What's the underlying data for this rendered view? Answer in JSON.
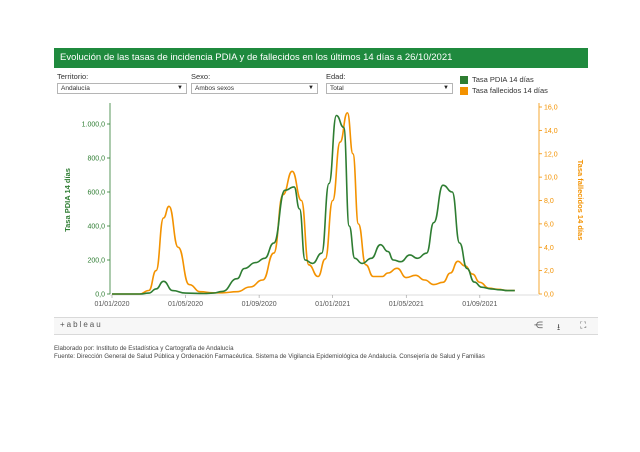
{
  "header": {
    "title": "Evolución de las tasas de incidencia PDIA y de fallecidos en los últimos 14 días a 26/10/2021"
  },
  "filters": [
    {
      "label": "Territorio:",
      "value": "Andalucía"
    },
    {
      "label": "Sexo:",
      "value": "Ambos sexos"
    },
    {
      "label": "Edad:",
      "value": "Total"
    }
  ],
  "legend": [
    {
      "label": "Tasa PDIA 14 días",
      "color": "#2e7d32"
    },
    {
      "label": "Tasa fallecidos 14 días",
      "color": "#f39200"
    }
  ],
  "chart_data": {
    "type": "line",
    "x_ticks": [
      "01/01/2020",
      "01/05/2020",
      "01/09/2020",
      "01/01/2021",
      "01/05/2021",
      "01/09/2021"
    ],
    "ylabel_left": "Tasa PDIA 14 días",
    "ylabel_right": "Tasa fallecidos 14 días",
    "ylim_left": [
      0,
      1100
    ],
    "ylim_right": [
      0,
      16
    ],
    "y_ticks_left": [
      "0,0",
      "200,0",
      "400,0",
      "600,0",
      "800,0",
      "1.000,0"
    ],
    "y_ticks_right": [
      "0,0",
      "2,0",
      "4,0",
      "6,0",
      "8,0",
      "10,0",
      "12,0",
      "14,0",
      "16,0"
    ],
    "series": [
      {
        "name": "Tasa PDIA 14 días",
        "color": "#2e7d32",
        "x_months": [
          0,
          1.5,
          2,
          2.4,
          2.8,
          3.3,
          4,
          5,
          5.5,
          6,
          6.8,
          7.2,
          7.8,
          8.3,
          8.8,
          9.4,
          9.9,
          10.2,
          10.5,
          10.9,
          11.4,
          11.8,
          12.2,
          12.6,
          12.9,
          13.2,
          13.6,
          14.1,
          14.6,
          15,
          15.3,
          15.7,
          16.2,
          16.6,
          17.1,
          17.5,
          18,
          18.5,
          18.9,
          19.3,
          19.7,
          20.1,
          20.6,
          21.1,
          21.5,
          21.9
        ],
        "values": [
          0,
          0,
          5,
          30,
          75,
          20,
          5,
          3,
          5,
          15,
          90,
          150,
          185,
          210,
          300,
          610,
          630,
          500,
          200,
          180,
          240,
          650,
          1050,
          980,
          400,
          210,
          180,
          210,
          290,
          250,
          200,
          190,
          230,
          210,
          240,
          420,
          640,
          600,
          300,
          150,
          70,
          40,
          30,
          25,
          20,
          20
        ]
      },
      {
        "name": "Tasa fallecidos 14 días",
        "color": "#f39200",
        "x_months": [
          0,
          1.5,
          2,
          2.4,
          2.8,
          3.1,
          3.6,
          4.2,
          4.8,
          5.5,
          6,
          6.8,
          7.5,
          8.2,
          8.8,
          9.3,
          9.8,
          10.3,
          10.7,
          11.2,
          11.6,
          12,
          12.4,
          12.8,
          13.1,
          13.4,
          13.8,
          14.2,
          14.7,
          15,
          15.5,
          16,
          16.5,
          17,
          17.5,
          18,
          18.4,
          18.8,
          19.2,
          19.6,
          20,
          20.5,
          21,
          21.5,
          21.9
        ],
        "values": [
          0,
          0,
          0.3,
          2,
          6.5,
          7.5,
          4,
          0.8,
          0.2,
          0.1,
          0.1,
          0.2,
          0.6,
          1.2,
          3.5,
          8.5,
          10.5,
          8,
          2.5,
          1.5,
          3,
          8,
          13,
          15.5,
          12,
          6,
          2.5,
          1.5,
          1.5,
          1.8,
          2.2,
          1.4,
          1.6,
          1.2,
          0.8,
          1,
          1.8,
          2.8,
          2.4,
          1.7,
          1,
          0.5,
          0.4,
          0.3,
          0.3
        ]
      }
    ],
    "grid": false
  },
  "toolbar": {
    "logo": "+ableau",
    "share_icon": "share-icon",
    "download_icon": "download-icon",
    "fullscreen_icon": "fullscreen-icon"
  },
  "footer": {
    "line1": "Elaborado por: Instituto de Estadística y Cartografía de Andalucía",
    "line2": "Fuente: Dirección General de Salud Pública y Ordenación Farmacéutica. Sistema de Vigilancia Epidemiológica de Andalucía. Consejería de Salud y Familias"
  }
}
